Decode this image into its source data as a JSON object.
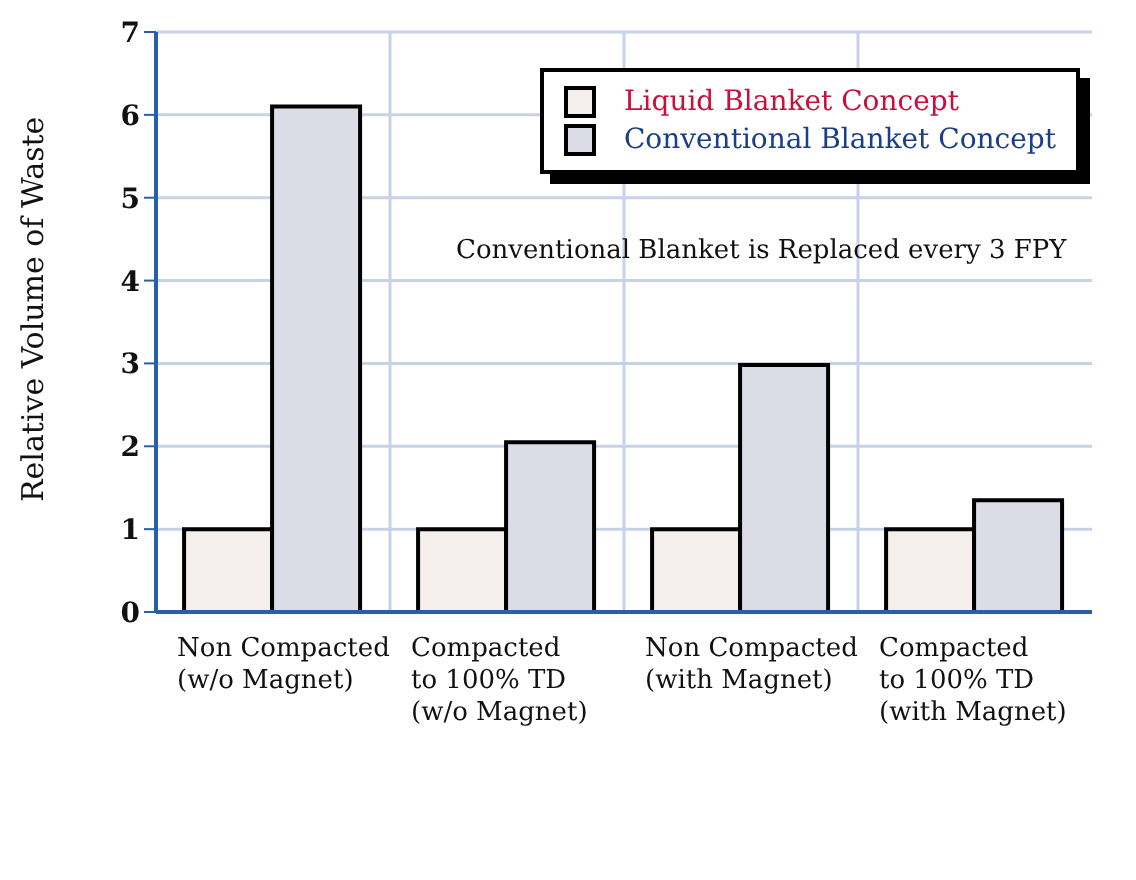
{
  "chart_data": {
    "type": "bar",
    "ylabel": "Relative Volume of Waste",
    "categories": [
      "Non Compacted\n(w/o Magnet)",
      "Compacted\nto 100% TD\n(w/o Magnet)",
      "Non Compacted\n(with Magnet)",
      "Compacted\nto 100% TD\n(with Magnet)"
    ],
    "series": [
      {
        "name": "Liquid Blanket Concept",
        "color": "#f4eeec",
        "values": [
          1,
          1,
          1,
          1
        ]
      },
      {
        "name": "Conventional Blanket Concept",
        "color": "#dcdce6",
        "values": [
          6.1,
          2.05,
          2.98,
          1.35
        ]
      }
    ],
    "ylim": [
      0,
      7
    ],
    "yticks": [
      0,
      1,
      2,
      3,
      4,
      5,
      6,
      7
    ],
    "grid": true,
    "legend": "top right",
    "annotations": [
      "Conventional Blanket is Replaced every 3 FPY"
    ]
  }
}
